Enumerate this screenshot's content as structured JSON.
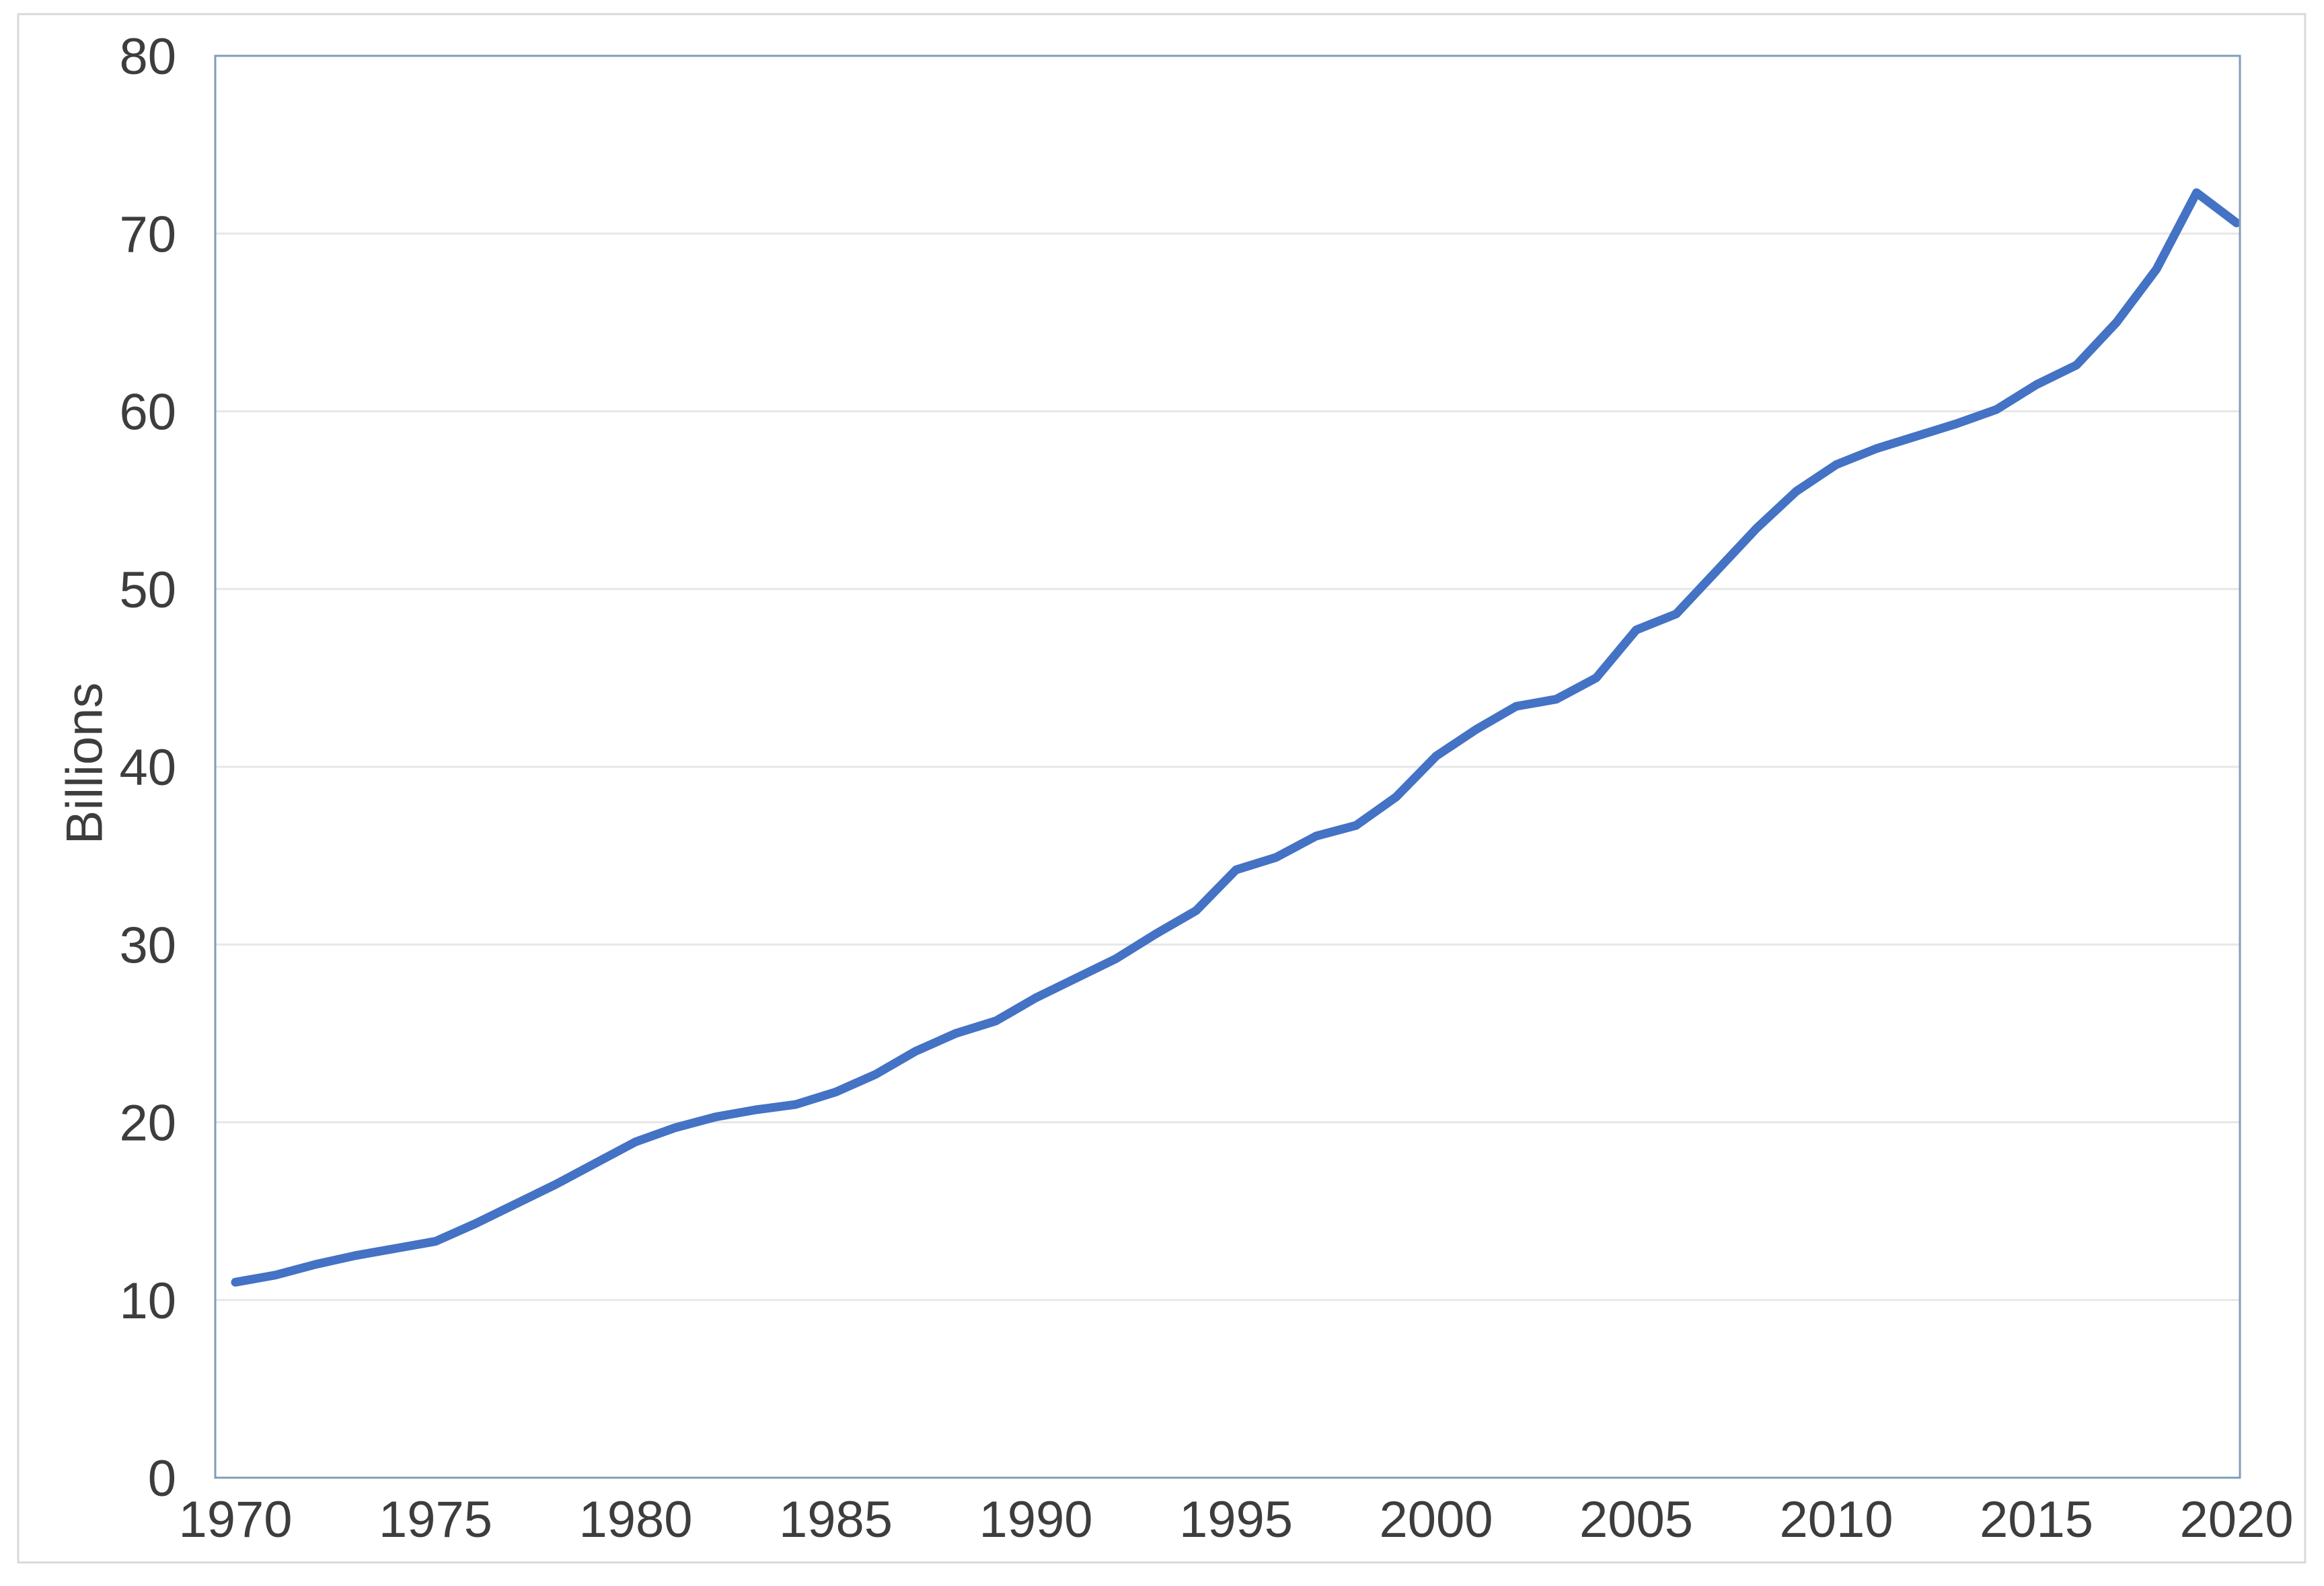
{
  "figure": {
    "background_color": "#ffffff",
    "outer_border_color": "#d9d9d9"
  },
  "chart_data": {
    "type": "line",
    "title": "",
    "xlabel": "",
    "ylabel": "Billions",
    "legend": "none",
    "grid": "horizontal",
    "gridline_color": "#e7e7e7",
    "plot_border_color": "#7f9db9",
    "tick_label_color": "#3d3d3d",
    "ylim": [
      0,
      80
    ],
    "yticks": [
      0,
      10,
      20,
      30,
      40,
      50,
      60,
      70,
      80
    ],
    "xticks": [
      1970,
      1975,
      1980,
      1985,
      1990,
      1995,
      2000,
      2005,
      2010,
      2015,
      2020
    ],
    "x": [
      1970,
      1971,
      1972,
      1973,
      1974,
      1975,
      1976,
      1977,
      1978,
      1979,
      1980,
      1981,
      1982,
      1983,
      1984,
      1985,
      1986,
      1987,
      1988,
      1989,
      1990,
      1991,
      1992,
      1993,
      1994,
      1995,
      1996,
      1997,
      1998,
      1999,
      2000,
      2001,
      2002,
      2003,
      2004,
      2005,
      2006,
      2007,
      2008,
      2009,
      2010,
      2011,
      2012,
      2013,
      2014,
      2015,
      2016,
      2017,
      2018,
      2019,
      2020
    ],
    "series": [
      {
        "name": "Billions",
        "color": "#4472c4",
        "values": [
          11.0,
          11.4,
          12.0,
          12.5,
          12.9,
          13.3,
          14.3,
          15.4,
          16.5,
          17.7,
          18.9,
          19.7,
          20.3,
          20.7,
          21.0,
          21.7,
          22.7,
          24.0,
          25.0,
          25.7,
          27.0,
          28.1,
          29.2,
          30.6,
          31.9,
          34.2,
          34.9,
          36.1,
          36.7,
          38.3,
          40.6,
          42.1,
          43.4,
          43.8,
          45.0,
          47.7,
          48.6,
          51.0,
          53.4,
          55.5,
          57.0,
          57.9,
          58.6,
          59.3,
          60.1,
          61.5,
          62.6,
          65.0,
          68.0,
          72.3,
          70.6
        ]
      }
    ]
  }
}
